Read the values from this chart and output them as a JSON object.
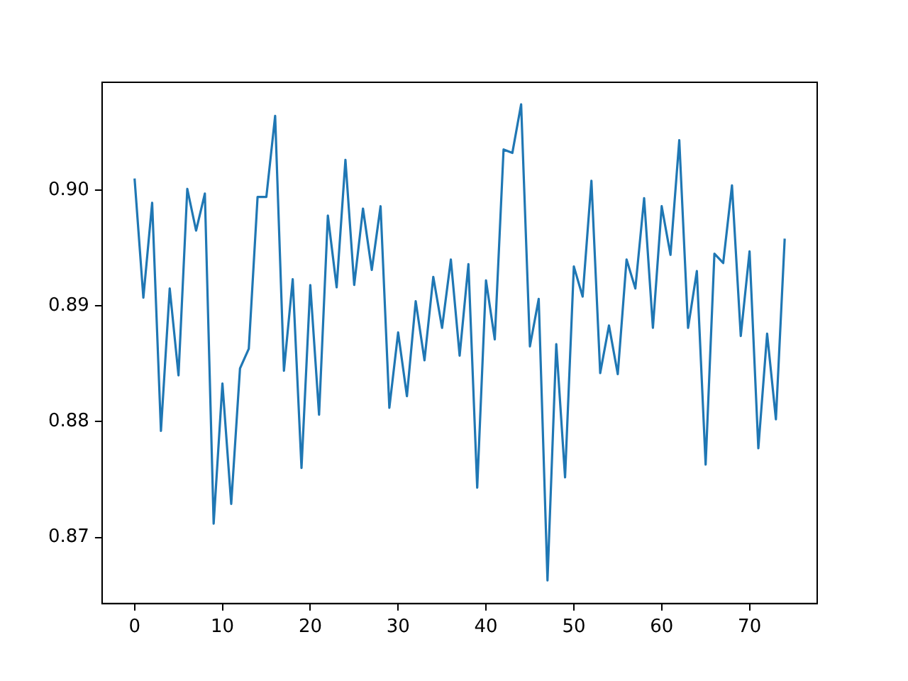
{
  "chart_data": {
    "type": "line",
    "x": [
      0,
      1,
      2,
      3,
      4,
      5,
      6,
      7,
      8,
      9,
      10,
      11,
      12,
      13,
      14,
      15,
      16,
      17,
      18,
      19,
      20,
      21,
      22,
      23,
      24,
      25,
      26,
      27,
      28,
      29,
      30,
      31,
      32,
      33,
      34,
      35,
      36,
      37,
      38,
      39,
      40,
      41,
      42,
      43,
      44,
      45,
      46,
      47,
      48,
      49,
      50,
      51,
      52,
      53,
      54,
      55,
      56,
      57,
      58,
      59,
      60,
      61,
      62,
      63,
      64,
      65,
      66,
      67,
      68,
      69,
      70,
      71,
      72,
      73,
      74
    ],
    "series": [
      {
        "color": "#1f77b4",
        "values": [
          0.901,
          0.8907,
          0.8989,
          0.8792,
          0.8915,
          0.884,
          0.9001,
          0.8965,
          0.8997,
          0.8712,
          0.8833,
          0.8729,
          0.8846,
          0.8863,
          0.8994,
          0.8994,
          0.9064,
          0.8844,
          0.8923,
          0.876,
          0.8918,
          0.8806,
          0.8978,
          0.8916,
          0.9026,
          0.8918,
          0.8984,
          0.8931,
          0.8986,
          0.8812,
          0.8877,
          0.8822,
          0.8904,
          0.8853,
          0.8925,
          0.8881,
          0.894,
          0.8857,
          0.8936,
          0.8743,
          0.8922,
          0.8871,
          0.9035,
          0.9032,
          0.9074,
          0.8865,
          0.8906,
          0.8663,
          0.8867,
          0.8752,
          0.8934,
          0.8908,
          0.9008,
          0.8842,
          0.8883,
          0.8841,
          0.894,
          0.8915,
          0.8993,
          0.8881,
          0.8986,
          0.8944,
          0.9043,
          0.8881,
          0.893,
          0.8763,
          0.8945,
          0.8937,
          0.9004,
          0.8874,
          0.8947,
          0.8777,
          0.8876,
          0.8802,
          0.8958
        ]
      }
    ],
    "xlim": [
      -3.7,
      77.7
    ],
    "xticks": [
      0,
      10,
      20,
      30,
      40,
      50,
      60,
      70
    ],
    "ylim": [
      0.8643,
      0.9093
    ],
    "yticks": [
      {
        "value": 0.87,
        "label": "0.87"
      },
      {
        "value": 0.88,
        "label": "0.88"
      },
      {
        "value": 0.89,
        "label": "0.89"
      },
      {
        "value": 0.9,
        "label": "0.90"
      }
    ],
    "grid": false,
    "legend": false
  }
}
